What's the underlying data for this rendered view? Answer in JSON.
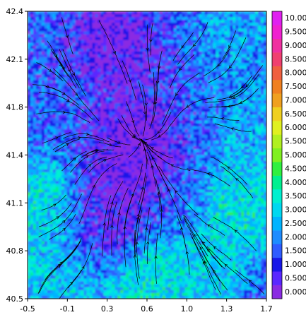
{
  "chart_data": {
    "type": "heatmap",
    "title": "",
    "xlabel": "",
    "ylabel": "",
    "xlim": [
      -0.5,
      1.7
    ],
    "ylim": [
      40.5,
      42.4
    ],
    "x_ticks": [
      "-0.5",
      "-0.1",
      "0.3",
      "0.6",
      "1.0",
      "1.3",
      "1.7"
    ],
    "y_ticks": [
      "40.5",
      "40.8",
      "41.1",
      "41.4",
      "41.8",
      "42.1",
      "42.4"
    ],
    "overlay": "streamlines",
    "colorbar": {
      "placement": "right",
      "levels": [
        "0.000",
        "0.500",
        "1.000",
        "1.500",
        "2.000",
        "2.500",
        "3.000",
        "3.500",
        "4.000",
        "4.500",
        "5.000",
        "5.500",
        "6.000",
        "6.500",
        "7.000",
        "7.500",
        "8.000",
        "8.500",
        "9.000",
        "9.500",
        "10.00"
      ],
      "colors": [
        "#8a2be2",
        "#5a28ff",
        "#1818e8",
        "#2f5cff",
        "#1e8cff",
        "#00b4ff",
        "#00d8f0",
        "#00f0d0",
        "#00f090",
        "#30f040",
        "#80f020",
        "#b0f020",
        "#e0f020",
        "#f0d020",
        "#f0a020",
        "#f08020",
        "#f06040",
        "#f04070",
        "#f030a0",
        "#f020d0",
        "#e020f0"
      ]
    },
    "field": {
      "description": "scalar field mostly 0.5-3.0 with peaks around 3.0-4.0 near edges",
      "centers": [
        {
          "x": 0.5,
          "y": 41.5,
          "value": 0.3
        },
        {
          "x": 0.3,
          "y": 42.2,
          "value": 0.5
        },
        {
          "x": 0.2,
          "y": 41.0,
          "value": 0.4
        },
        {
          "x": -0.4,
          "y": 41.1,
          "value": 3.5
        },
        {
          "x": 1.5,
          "y": 41.1,
          "value": 3.5
        },
        {
          "x": 0.6,
          "y": 40.55,
          "value": 3.8
        },
        {
          "x": -0.2,
          "y": 40.7,
          "value": 3.0
        },
        {
          "x": 1.1,
          "y": 40.6,
          "value": 3.0
        },
        {
          "x": 1.4,
          "y": 42.3,
          "value": 2.5
        },
        {
          "x": 1.6,
          "y": 41.6,
          "value": 2.5
        }
      ]
    }
  }
}
